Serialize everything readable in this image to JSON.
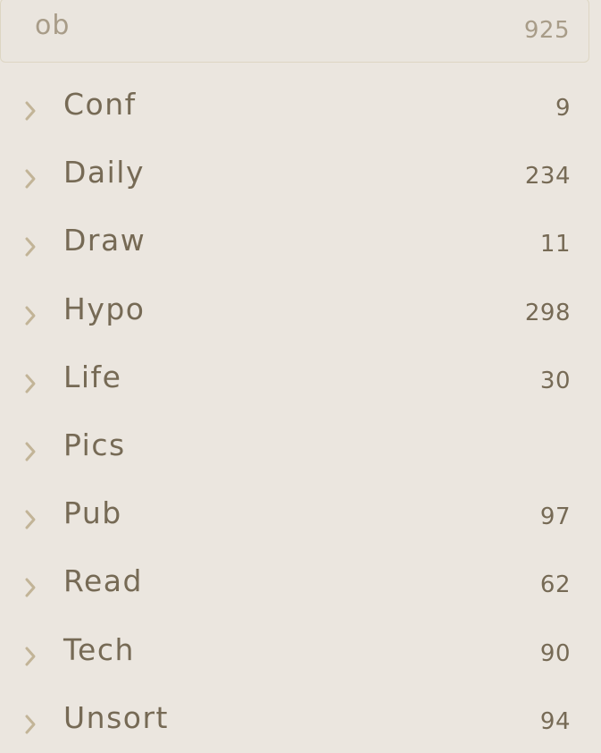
{
  "vault": {
    "name": "ob",
    "count": "925"
  },
  "folders": [
    {
      "label": "Conf",
      "count": "9"
    },
    {
      "label": "Daily",
      "count": "234"
    },
    {
      "label": "Draw",
      "count": "11"
    },
    {
      "label": "Hypo",
      "count": "298"
    },
    {
      "label": "Life",
      "count": "30"
    },
    {
      "label": "Pics",
      "count": ""
    },
    {
      "label": "Pub",
      "count": "97"
    },
    {
      "label": "Read",
      "count": "62"
    },
    {
      "label": "Tech",
      "count": "90"
    },
    {
      "label": "Unsort",
      "count": "94"
    }
  ],
  "icons": {
    "folder_toggle": "chevron-right-icon"
  },
  "colors": {
    "background": "#ebe6df",
    "text": "#766a55",
    "muted_text": "#a89c88",
    "chevron": "#c2b497",
    "border": "#ddd6c3"
  }
}
